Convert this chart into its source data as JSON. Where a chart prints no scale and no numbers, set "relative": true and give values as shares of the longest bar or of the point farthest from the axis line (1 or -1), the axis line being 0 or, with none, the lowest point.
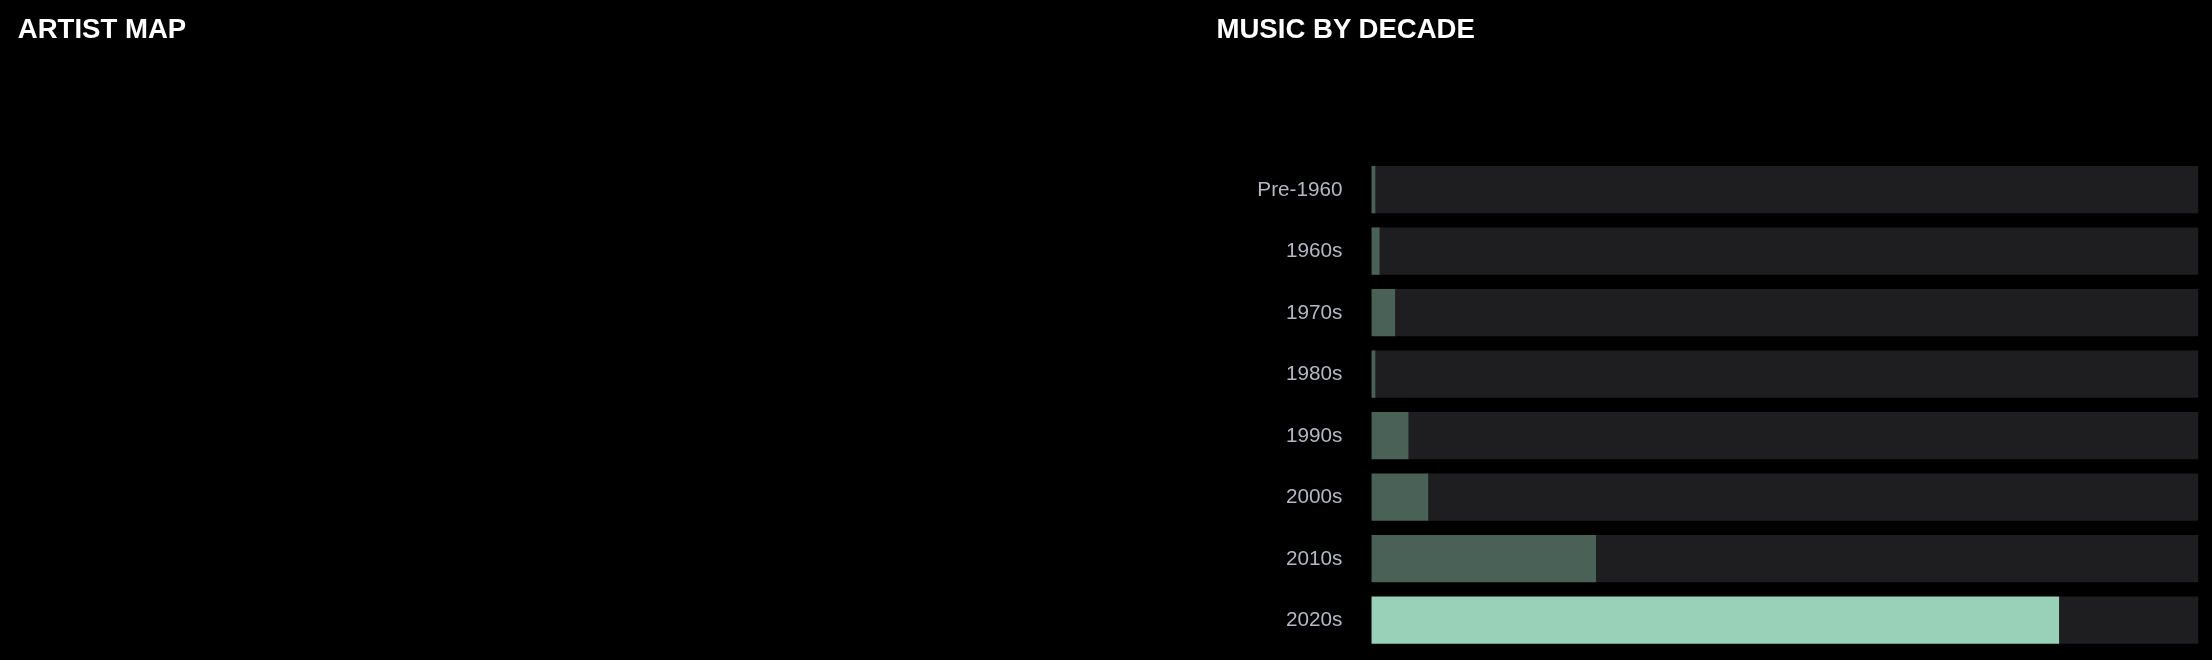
{
  "chart_data": [
    {
      "type": "other",
      "title": "ARTIST MAP"
    },
    {
      "type": "bar",
      "title": "MUSIC BY DECADE",
      "orientation": "horizontal",
      "stacked": true,
      "relative": true,
      "grid": false,
      "categories": [
        "Pre-1960",
        "1960s",
        "1970s",
        "1980s",
        "1990s",
        "2000s",
        "2010s",
        "2020s"
      ],
      "series": [
        {
          "colors": [
            "#4a6158",
            "#4a6158",
            "#4a6158",
            "#4a6158",
            "#4a6158",
            "#4a6158",
            "#4a6158",
            "#99d1b8"
          ],
          "values": [
            0.005,
            0.01,
            0.029,
            0.005,
            0.045,
            0.069,
            0.272,
            0.832
          ]
        },
        {
          "color": "#1e1e20",
          "values": [
            0.995,
            0.99,
            0.971,
            0.995,
            0.955,
            0.931,
            0.728,
            0.168
          ]
        }
      ]
    }
  ]
}
